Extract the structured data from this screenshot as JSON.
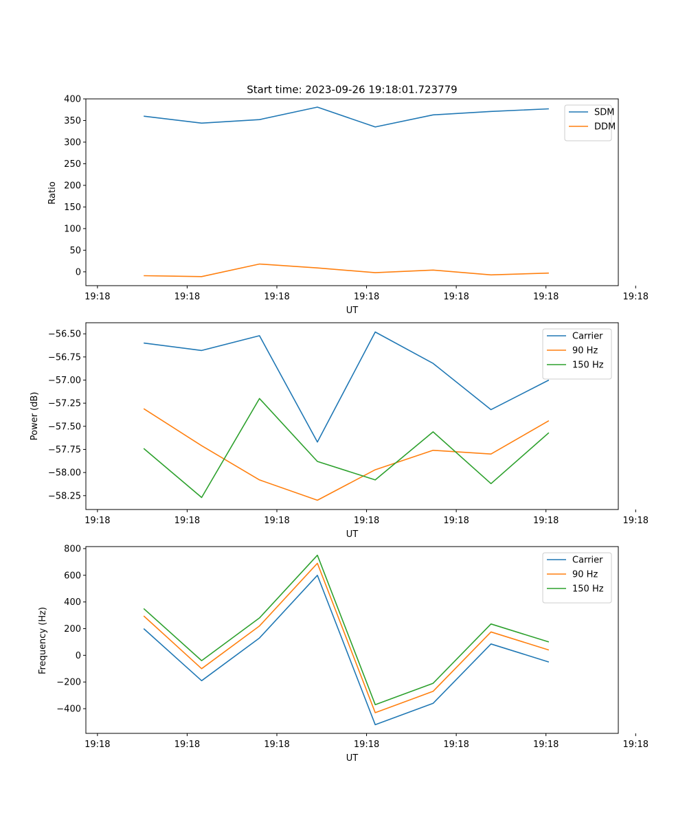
{
  "figure_title": "Start time: 2023-09-26 19:18:01.723779",
  "colors": {
    "blue": "#1f77b4",
    "orange": "#ff7f0e",
    "green": "#2ca02c"
  },
  "chart_data": [
    {
      "type": "line",
      "title": "Start time: 2023-09-26 19:18:01.723779",
      "xlabel": "UT",
      "ylabel": "Ratio",
      "x": [
        1,
        2,
        3,
        4,
        5,
        6,
        7,
        8
      ],
      "xlim": [
        0,
        9.2
      ],
      "xticks": [
        0.2,
        1.75,
        3.3,
        4.85,
        6.4,
        7.95,
        9.5
      ],
      "xtick_labels": [
        "19:18",
        "19:18",
        "19:18",
        "19:18",
        "19:18",
        "19:18",
        "19:18"
      ],
      "ylim": [
        -32,
        400
      ],
      "yticks": [
        0,
        50,
        100,
        150,
        200,
        250,
        300,
        350,
        400
      ],
      "ytick_labels": [
        "0",
        "50",
        "100",
        "150",
        "200",
        "250",
        "300",
        "350",
        "400"
      ],
      "legend": "top-right",
      "series": [
        {
          "name": "SDM",
          "color": "#1f77b4",
          "values": [
            360,
            344,
            352,
            381,
            335,
            363,
            371,
            377
          ]
        },
        {
          "name": "DDM",
          "color": "#ff7f0e",
          "values": [
            -9,
            -11,
            18,
            9,
            -2,
            4,
            -7,
            -3
          ]
        }
      ]
    },
    {
      "type": "line",
      "title": "",
      "xlabel": "UT",
      "ylabel": "Power (dB)",
      "x": [
        1,
        2,
        3,
        4,
        5,
        6,
        7,
        8
      ],
      "xlim": [
        0,
        9.2
      ],
      "xticks": [
        0.2,
        1.75,
        3.3,
        4.85,
        6.4,
        7.95,
        9.5
      ],
      "xtick_labels": [
        "19:18",
        "19:18",
        "19:18",
        "19:18",
        "19:18",
        "19:18",
        "19:18"
      ],
      "ylim": [
        -58.4,
        -56.38
      ],
      "yticks": [
        -58.25,
        -58.0,
        -57.75,
        -57.5,
        -57.25,
        -57.0,
        -56.75,
        -56.5
      ],
      "ytick_labels": [
        "−58.25",
        "−58.00",
        "−57.75",
        "−57.50",
        "−57.25",
        "−57.00",
        "−56.75",
        "−56.50"
      ],
      "legend": "top-right",
      "series": [
        {
          "name": "Carrier",
          "color": "#1f77b4",
          "values": [
            -56.6,
            -56.68,
            -56.52,
            -57.67,
            -56.48,
            -56.82,
            -57.32,
            -57.0
          ]
        },
        {
          "name": "90 Hz",
          "color": "#ff7f0e",
          "values": [
            -57.31,
            -57.71,
            -58.08,
            -58.3,
            -57.97,
            -57.76,
            -57.8,
            -57.44
          ]
        },
        {
          "name": "150 Hz",
          "color": "#2ca02c",
          "values": [
            -57.74,
            -58.27,
            -57.2,
            -57.88,
            -58.08,
            -57.56,
            -58.12,
            -57.57
          ]
        }
      ]
    },
    {
      "type": "line",
      "title": "",
      "xlabel": "UT",
      "ylabel": "Frequency (Hz)",
      "x": [
        1,
        2,
        3,
        4,
        5,
        6,
        7,
        8
      ],
      "xlim": [
        0,
        9.2
      ],
      "xticks": [
        0.2,
        1.75,
        3.3,
        4.85,
        6.4,
        7.95,
        9.5
      ],
      "xtick_labels": [
        "19:18",
        "19:18",
        "19:18",
        "19:18",
        "19:18",
        "19:18",
        "19:18"
      ],
      "ylim": [
        -585,
        815
      ],
      "yticks": [
        -400,
        -200,
        0,
        200,
        400,
        600,
        800
      ],
      "ytick_labels": [
        "−400",
        "−200",
        "0",
        "200",
        "400",
        "600",
        "800"
      ],
      "legend": "top-right",
      "series": [
        {
          "name": "Carrier",
          "color": "#1f77b4",
          "values": [
            200,
            -190,
            130,
            600,
            -520,
            -360,
            85,
            -50
          ]
        },
        {
          "name": "90 Hz",
          "color": "#ff7f0e",
          "values": [
            295,
            -100,
            220,
            690,
            -430,
            -270,
            175,
            40
          ]
        },
        {
          "name": "150 Hz",
          "color": "#2ca02c",
          "values": [
            350,
            -40,
            280,
            750,
            -370,
            -210,
            235,
            100
          ]
        }
      ]
    }
  ]
}
